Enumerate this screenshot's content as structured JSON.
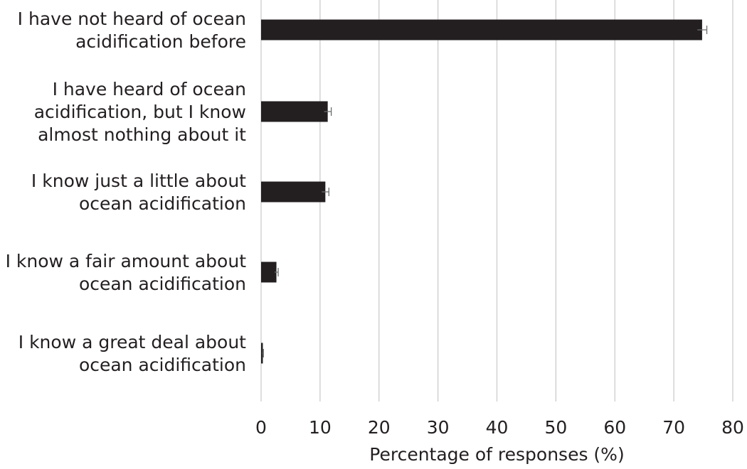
{
  "chart_data": {
    "type": "bar",
    "orientation": "horizontal",
    "categories": [
      [
        "I have not heard of ocean",
        "acidification before"
      ],
      [
        "I have heard of ocean",
        "acidification, but I know",
        "almost nothing about it"
      ],
      [
        "I know just a little about",
        "ocean acidification"
      ],
      [
        "I know a fair amount about",
        "ocean acidification"
      ],
      [
        "I know a great deal about",
        "ocean acidification"
      ]
    ],
    "values": [
      74.8,
      11.3,
      10.9,
      2.6,
      0.3
    ],
    "errors": [
      0.8,
      0.6,
      0.6,
      0.3,
      0.1
    ],
    "xlabel": "Percentage of responses (%)",
    "xlim": [
      0,
      80
    ],
    "xticks": [
      0,
      10,
      20,
      30,
      40,
      50,
      60,
      70,
      80
    ],
    "grid": "vertical",
    "bar_color": "#231f20",
    "grid_color": "#c8c8c8"
  }
}
